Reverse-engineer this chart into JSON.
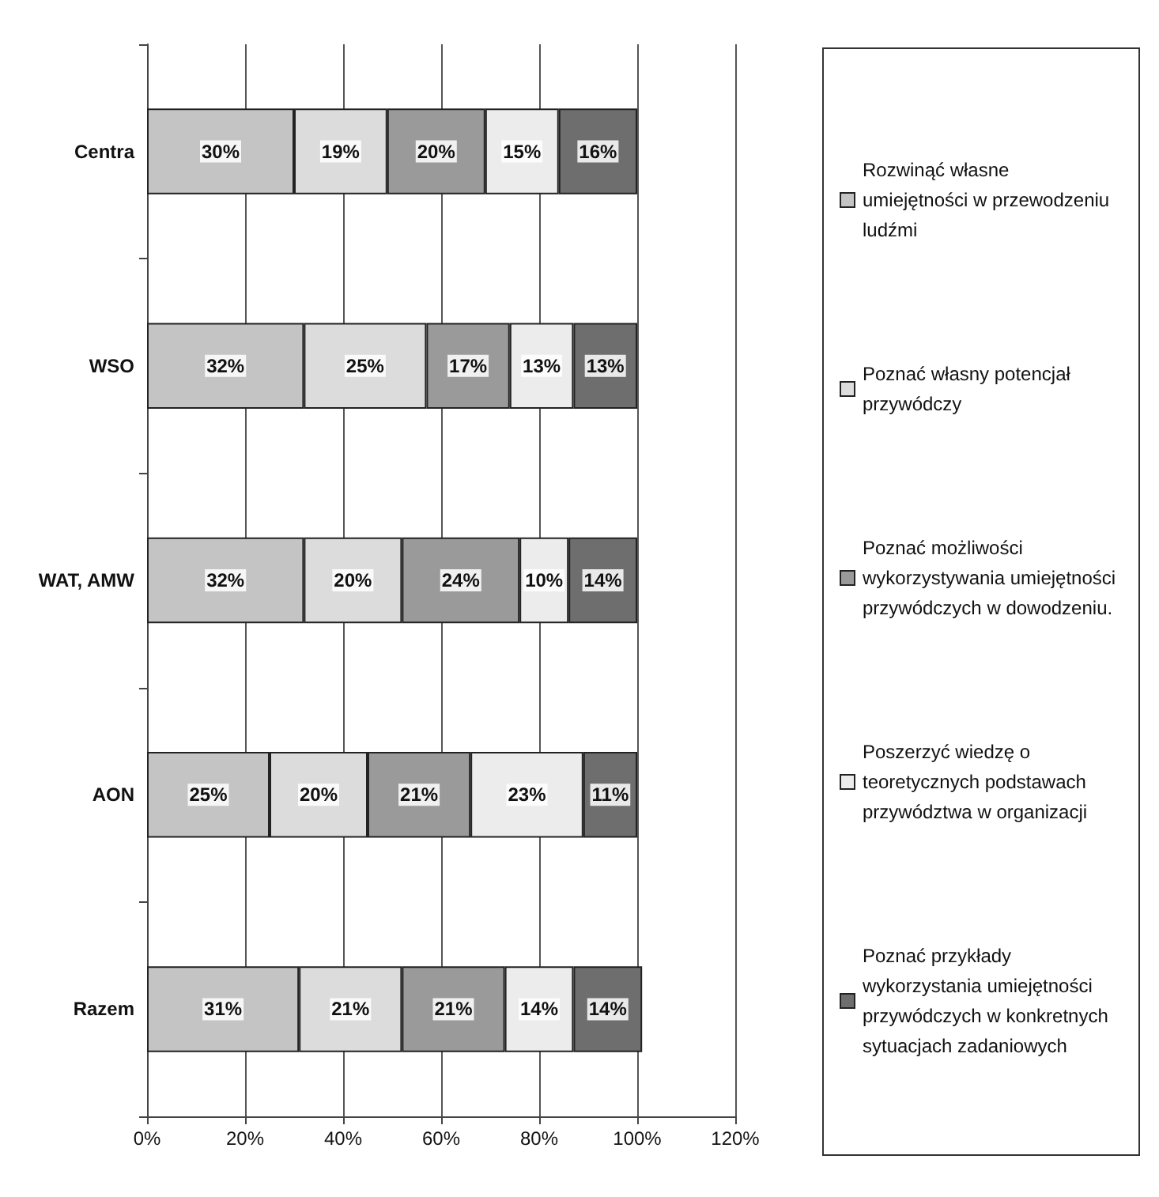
{
  "chart_data": {
    "type": "bar",
    "orientation": "horizontal",
    "stacked": true,
    "categories": [
      "Centra",
      "WSO",
      "WAT, AMW",
      "AON",
      "Razem"
    ],
    "series": [
      {
        "name": "Rozwinąć własne umiejętności w przewodzeniu ludźmi",
        "color": "#c4c4c4",
        "values": [
          30,
          32,
          32,
          25,
          31
        ],
        "value_labels": [
          "30%",
          "32%",
          "32%",
          "25%",
          "31%"
        ]
      },
      {
        "name": "Poznać własny potencjał przywódczy",
        "color": "#dcdcdc",
        "values": [
          19,
          25,
          20,
          20,
          21
        ],
        "value_labels": [
          "19%",
          "25%",
          "20%",
          "20%",
          "21%"
        ]
      },
      {
        "name": "Poznać możliwości wykorzystywania umiejętności przywódczych w dowodzeniu.",
        "color": "#9a9a9a",
        "values": [
          20,
          17,
          24,
          21,
          21
        ],
        "value_labels": [
          "20%",
          "17%",
          "24%",
          "21%",
          "21%"
        ]
      },
      {
        "name": "Poszerzyć wiedzę o teoretycznych podstawach przywództwa w organizacji",
        "color": "#ececec",
        "values": [
          15,
          13,
          10,
          23,
          14
        ],
        "value_labels": [
          "15%",
          "13%",
          "10%",
          "23%",
          "14%"
        ]
      },
      {
        "name": "Poznać przykłady wykorzystania umiejętności przywódczych w konkretnych sytuacjach zadaniowych",
        "color": "#6e6e6e",
        "values": [
          16,
          13,
          14,
          11,
          14
        ],
        "value_labels": [
          "16%",
          "13%",
          "14%",
          "11%",
          "14%"
        ]
      }
    ],
    "xlim": [
      0,
      120
    ],
    "xticks": [
      {
        "value": 0,
        "label": "0%"
      },
      {
        "value": 20,
        "label": "20%"
      },
      {
        "value": 40,
        "label": "40%"
      },
      {
        "value": 60,
        "label": "60%"
      },
      {
        "value": 80,
        "label": "80%"
      },
      {
        "value": 100,
        "label": "100%"
      },
      {
        "value": 120,
        "label": "120%"
      }
    ],
    "grid": "x",
    "legend": "right"
  }
}
